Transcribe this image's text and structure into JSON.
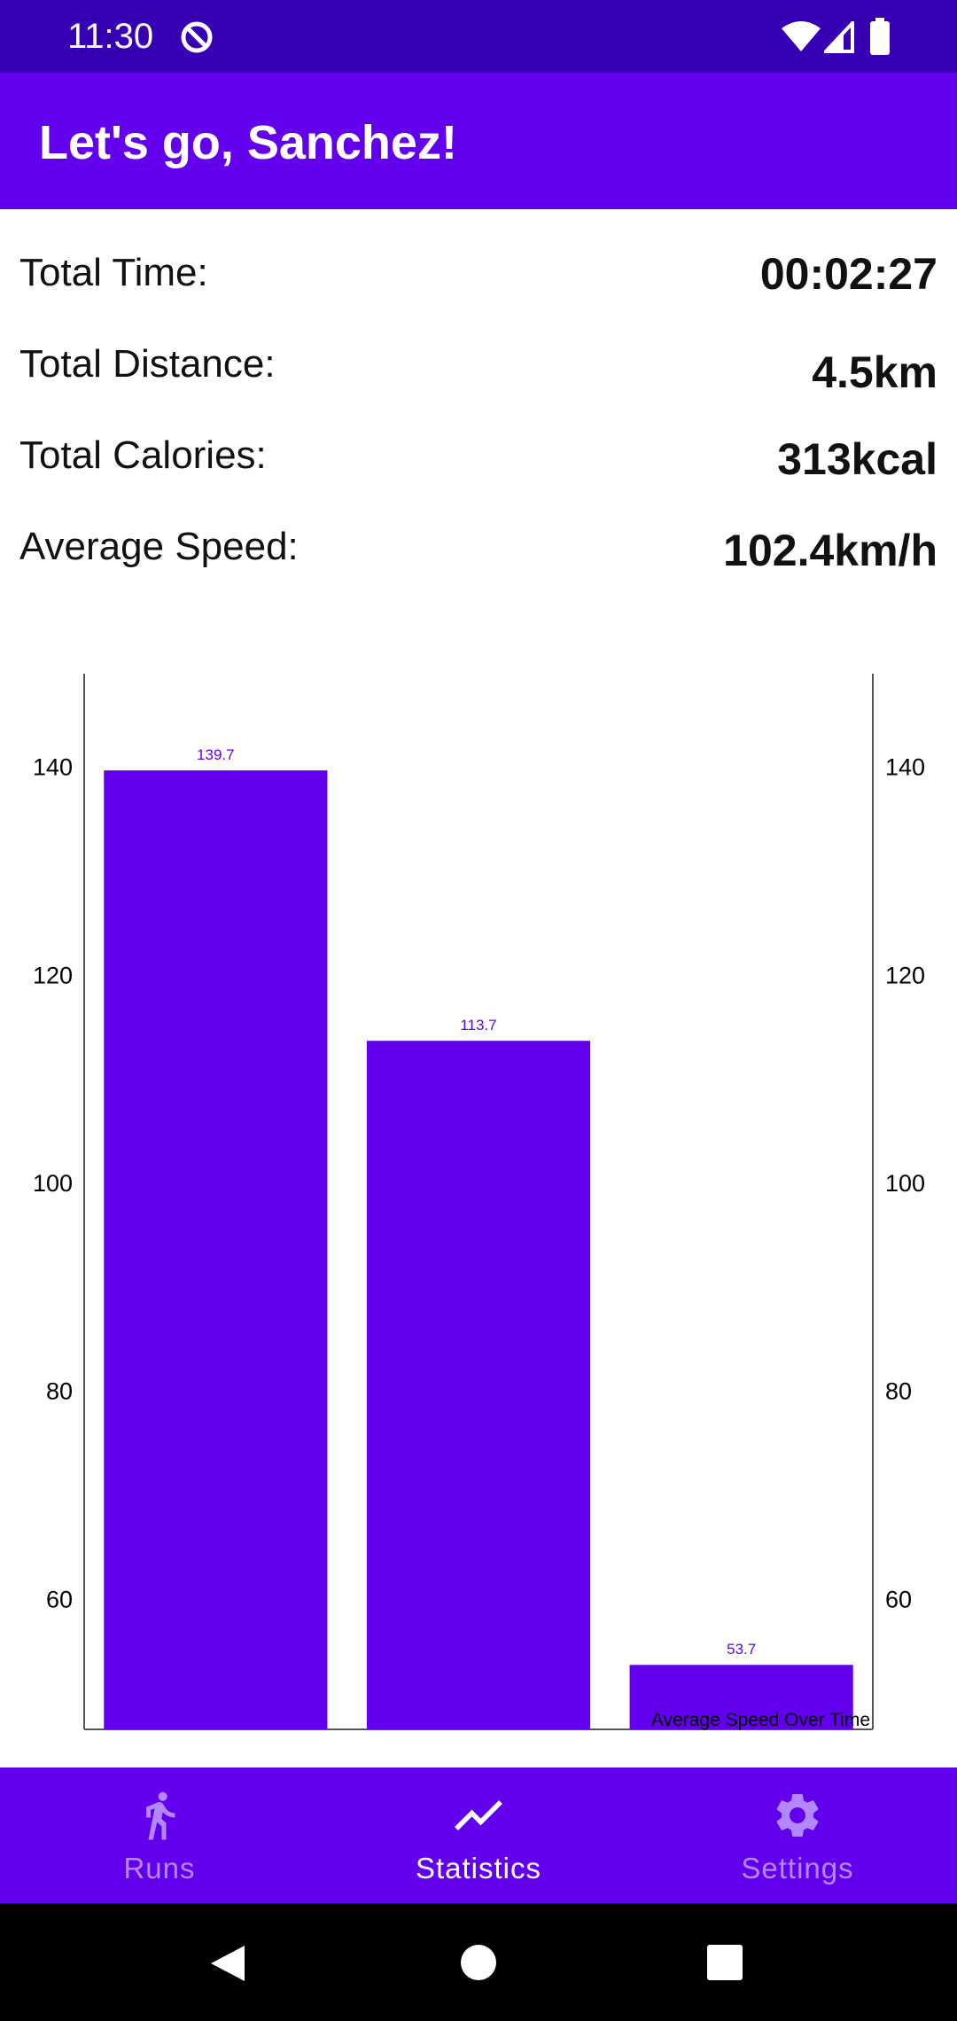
{
  "status_bar": {
    "time": "11:30"
  },
  "app_bar": {
    "title": "Let's go, Sanchez!"
  },
  "stats": {
    "total_time_label": "Total Time:",
    "total_time_value": "00:02:27",
    "total_distance_label": "Total Distance:",
    "total_distance_value": "4.5km",
    "total_calories_label": "Total Calories:",
    "total_calories_value": "313kcal",
    "average_speed_label": "Average Speed:",
    "average_speed_value": "102.4km/h"
  },
  "chart_data": {
    "type": "bar",
    "title": "",
    "description_label": "Average Speed Over Time",
    "values": [
      139.7,
      113.7,
      53.7
    ],
    "value_labels": [
      "139.7",
      "113.7",
      "53.7"
    ],
    "ylim": [
      47.5,
      149
    ],
    "yticks": [
      60,
      80,
      100,
      120,
      140
    ],
    "ytick_labels": [
      "60",
      "80",
      "100",
      "120",
      "140"
    ],
    "axis_left": true,
    "axis_right": true,
    "grid": false,
    "bar_color": "#6200ee"
  },
  "bottom_nav": {
    "items": [
      {
        "label": "Runs",
        "icon": "running-icon",
        "active": false
      },
      {
        "label": "Statistics",
        "icon": "trending-up-icon",
        "active": true
      },
      {
        "label": "Settings",
        "icon": "gear-icon",
        "active": false
      }
    ]
  },
  "colors": {
    "primary": "#6200ee",
    "primary_dark": "#3700b3",
    "nav_inactive": "#b388ff",
    "nav_active": "#ffffff"
  }
}
